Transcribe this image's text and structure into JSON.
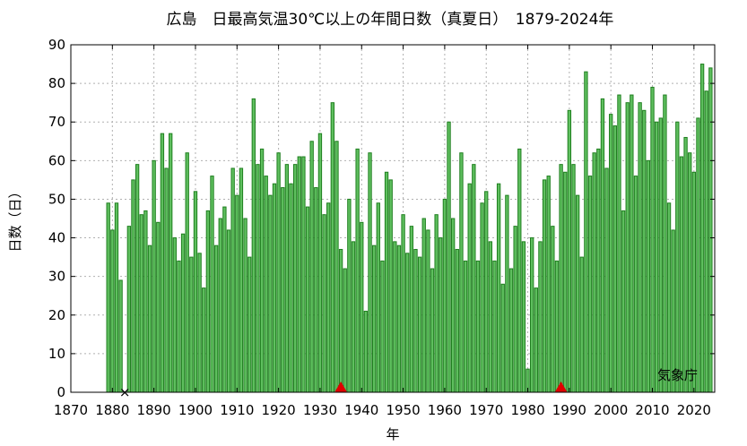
{
  "chart_data": {
    "type": "bar",
    "title": "広島　日最高気温30℃以上の年間日数（真夏日）　1879-2024年",
    "xlabel": "年",
    "ylabel": "日数（日）",
    "credit": "気象庁",
    "xlim": [
      1870,
      2025
    ],
    "ylim": [
      0,
      90
    ],
    "x_ticks": [
      1870,
      1880,
      1890,
      1900,
      1910,
      1920,
      1930,
      1940,
      1950,
      1960,
      1970,
      1980,
      1990,
      2000,
      2010,
      2020
    ],
    "y_ticks": [
      0,
      10,
      20,
      30,
      40,
      50,
      60,
      70,
      80,
      90
    ],
    "grid": true,
    "bar_color": "#5fbf5f",
    "bar_edge_color": "#1f7f1f",
    "marker_triangle_color": "#e00000",
    "years": [
      1879,
      1880,
      1881,
      1882,
      1883,
      1884,
      1885,
      1886,
      1887,
      1888,
      1889,
      1890,
      1891,
      1892,
      1893,
      1894,
      1895,
      1896,
      1897,
      1898,
      1899,
      1900,
      1901,
      1902,
      1903,
      1904,
      1905,
      1906,
      1907,
      1908,
      1909,
      1910,
      1911,
      1912,
      1913,
      1914,
      1915,
      1916,
      1917,
      1918,
      1919,
      1920,
      1921,
      1922,
      1923,
      1924,
      1925,
      1926,
      1927,
      1928,
      1929,
      1930,
      1931,
      1932,
      1933,
      1934,
      1935,
      1936,
      1937,
      1938,
      1939,
      1940,
      1941,
      1942,
      1943,
      1944,
      1945,
      1946,
      1947,
      1948,
      1949,
      1950,
      1951,
      1952,
      1953,
      1954,
      1955,
      1956,
      1957,
      1958,
      1959,
      1960,
      1961,
      1962,
      1963,
      1964,
      1965,
      1966,
      1967,
      1968,
      1969,
      1970,
      1971,
      1972,
      1973,
      1974,
      1975,
      1976,
      1977,
      1978,
      1979,
      1980,
      1981,
      1982,
      1983,
      1984,
      1985,
      1986,
      1987,
      1988,
      1989,
      1990,
      1991,
      1992,
      1993,
      1994,
      1995,
      1996,
      1997,
      1998,
      1999,
      2000,
      2001,
      2002,
      2003,
      2004,
      2005,
      2006,
      2007,
      2008,
      2009,
      2010,
      2011,
      2012,
      2013,
      2014,
      2015,
      2016,
      2017,
      2018,
      2019,
      2020,
      2021,
      2022,
      2023,
      2024
    ],
    "values": [
      49,
      42,
      49,
      29,
      0,
      43,
      55,
      59,
      46,
      47,
      38,
      60,
      44,
      67,
      58,
      67,
      40,
      34,
      41,
      62,
      35,
      52,
      36,
      27,
      47,
      56,
      38,
      45,
      48,
      42,
      58,
      51,
      58,
      45,
      35,
      76,
      59,
      63,
      56,
      51,
      54,
      62,
      53,
      59,
      54,
      59,
      61,
      61,
      48,
      65,
      53,
      67,
      46,
      49,
      75,
      65,
      37,
      32,
      50,
      39,
      63,
      44,
      21,
      62,
      38,
      49,
      34,
      57,
      55,
      39,
      38,
      46,
      36,
      43,
      37,
      35,
      45,
      42,
      32,
      46,
      40,
      50,
      70,
      45,
      37,
      62,
      34,
      54,
      59,
      34,
      49,
      52,
      39,
      34,
      54,
      28,
      51,
      32,
      43,
      63,
      39,
      6,
      40,
      27,
      39,
      55,
      56,
      43,
      34,
      59,
      57,
      73,
      59,
      51,
      35,
      83,
      56,
      62,
      63,
      76,
      58,
      72,
      69,
      77,
      47,
      75,
      77,
      56,
      75,
      73,
      60,
      79,
      70,
      71,
      77,
      49,
      42,
      70,
      61,
      66,
      62,
      57,
      71,
      85,
      78,
      84
    ],
    "missing_years": [
      1883
    ],
    "missing_marker": "×",
    "triangle_markers": [
      1935,
      1988
    ]
  }
}
